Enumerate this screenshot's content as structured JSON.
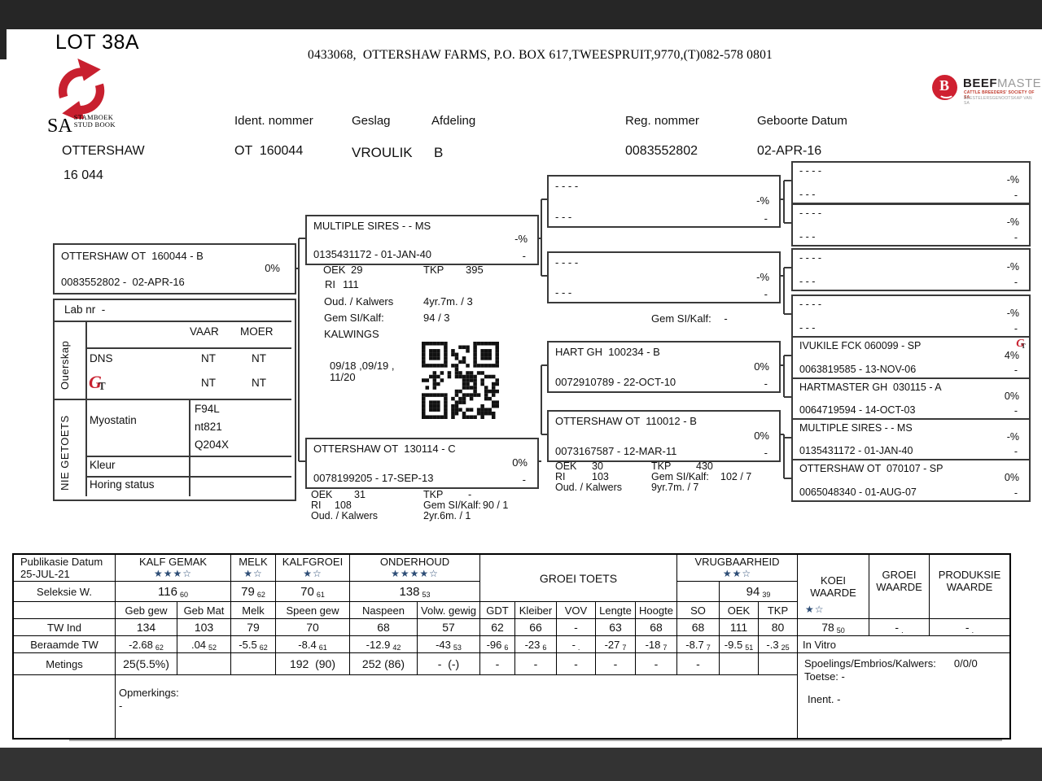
{
  "header": {
    "lot": "LOT 38A",
    "farm_line": "0433068,  OTTERSHAW FARMS, P.O. BOX 617,TWEESPRUIT,9770,(T)082-578 0801",
    "herd_name": "OTTERSHAW",
    "herd_number": "16 044",
    "sa_logo": {
      "sa": "SA",
      "line1": "STAMBOEK",
      "line2": "STUD BOOK"
    },
    "beefmaster": {
      "b": "B",
      "bold": "BEEF",
      "light": "MASTER",
      "sub1": "CATTLE BREEDERS' SOCIETY OF SA",
      "sub2": "BEESTELERSGENOOTSKAP VAN SA"
    },
    "accent_red": "#c8202f",
    "star_blue": "#2d4d76"
  },
  "identity": {
    "ident_label": "Ident. nommer",
    "ident": "OT  160044",
    "geslag_label": "Geslag",
    "geslag": "VROULIK",
    "afdeling_label": "Afdeling",
    "afdeling": "B",
    "reg_label": "Reg. nommer",
    "reg": "0083552802",
    "geboorte_label": "Geboorte Datum",
    "geboorte": "02-APR-16"
  },
  "animal": {
    "name": "OTTERSHAW OT  160044 - B",
    "pct": "0%",
    "reg": "0083552802 -  02-APR-16"
  },
  "lab": {
    "lab_nr": "Lab nr  -",
    "ouerskap": "Ouerskap",
    "vaar": "VAAR",
    "moer": "MOER",
    "dns": "DNS",
    "dns_vaar": "NT",
    "dns_moer": "NT",
    "gt_vaar": "NT",
    "gt_moer": "NT",
    "nie_getoets": "NIE GETOETS",
    "myostatin": "Myostatin",
    "myo1": "F94L",
    "myo2": "nt821",
    "myo3": "Q204X",
    "kleur": "Kleur",
    "horing": "Horing status"
  },
  "pedigree": {
    "sire": {
      "name": "MULTIPLE SIRES - - MS",
      "pct": "-%",
      "reg": "0135431172 - 01-JAN-40",
      "dash": "-"
    },
    "sire_stats": {
      "oek_l": "OEK",
      "oek": "29",
      "tkp_l": "TKP",
      "tkp": "395",
      "ri_l": "RI",
      "ri": "111",
      "oud_l": "Oud. / Kalwers",
      "oud": "4yr.7m. / 3",
      "gem_l": "Gem SI/Kalf:",
      "gem": "94 / 3",
      "kalwings_l": "KALWINGS",
      "kalwings1": "09/18 ,09/19 ,",
      "kalwings2": "11/20"
    },
    "dam": {
      "name": "OTTERSHAW OT  130114 - C",
      "pct": "0%",
      "reg": "0078199205 - 17-SEP-13",
      "dash": "-"
    },
    "dam_stats": {
      "oek_l": "OEK",
      "oek": "31",
      "tkp_l": "TKP",
      "tkp": "-",
      "ri_l": "RI",
      "ri": "108",
      "gem_l": "Gem SI/Kalf:",
      "gem": "90 / 1",
      "oud_l": "Oud. / Kalwers",
      "oud": "2yr.6m. / 1"
    },
    "gem_mid_l": "Gem SI/Kalf:",
    "gem_mid": "-",
    "gp": [
      {
        "name": "- - - -",
        "pct": "-%",
        "reg": "- - -",
        "dash": "-"
      },
      {
        "name": "- - - -",
        "pct": "-%",
        "reg": "- - -",
        "dash": "-"
      },
      {
        "name": "HART GH  100234 - B",
        "pct": "0%",
        "reg": "0072910789 - 22-OCT-10",
        "dash": "-"
      },
      {
        "name": "OTTERSHAW OT  110012 - B",
        "pct": "0%",
        "reg": "0073167587 - 12-MAR-11",
        "dash": "-"
      }
    ],
    "gp4_stats": {
      "oek_l": "OEK",
      "oek": "30",
      "tkp_l": "TKP",
      "tkp": "430",
      "ri_l": "RI",
      "ri": "103",
      "gem_l": "Gem SI/Kalf:",
      "gem": "102 / 7",
      "oud_l": "Oud. / Kalwers",
      "oud": "9yr.7m. / 7"
    },
    "ggp": [
      {
        "name": "- - - -",
        "pct": "-%",
        "reg": "- - -",
        "dash": "-"
      },
      {
        "name": "- - - -",
        "pct": "-%",
        "reg": "- - -",
        "dash": "-"
      },
      {
        "name": "- - - -",
        "pct": "-%",
        "reg": "- - -",
        "dash": "-"
      },
      {
        "name": "- - - -",
        "pct": "-%",
        "reg": "- - -",
        "dash": "-"
      },
      {
        "name": "IVUKILE FCK 060099 - SP",
        "pct": "4%",
        "reg": "0063819585 - 13-NOV-06",
        "dash": "-"
      },
      {
        "name": "HARTMASTER GH  030115 - A",
        "pct": "0%",
        "reg": "0064719594 - 14-OCT-03",
        "dash": "-"
      },
      {
        "name": "MULTIPLE SIRES - - MS",
        "pct": "-%",
        "reg": "0135431172 - 01-JAN-40",
        "dash": "-"
      },
      {
        "name": "OTTERSHAW OT  070107 - SP",
        "pct": "0%",
        "reg": "0065048340 - 01-AUG-07",
        "dash": "-"
      }
    ]
  },
  "table": {
    "pub_label": "Publikasie Datum",
    "pub_date": "25-JUL-21",
    "seleksie_label": "Seleksie W.",
    "twind_label": "TW Ind",
    "beraamde_label": "Beraamde TW",
    "metings_label": "Metings",
    "groups": {
      "kg": {
        "title": "KALF GEMAK",
        "stars": "★★★☆",
        "sel": "116",
        "acc": "60"
      },
      "melk": {
        "title": "MELK",
        "stars": "★☆",
        "sel": "79",
        "acc": "62"
      },
      "kgr": {
        "title": "KALFGROEI",
        "stars": "★☆",
        "sel": "70",
        "acc": "61"
      },
      "ond": {
        "title": "ONDERHOUD",
        "stars": "★★★★☆",
        "sel": "138",
        "acc": "53"
      },
      "gto": {
        "title": "GROEI TOETS"
      },
      "vru": {
        "title": "VRUGBAARHEID",
        "stars": "★★☆",
        "sel": "94",
        "acc": "39"
      },
      "koei": {
        "title": "KOEI WAARDE",
        "stars": "★☆"
      },
      "grw": {
        "title": "GROEI WAARDE"
      },
      "prw": {
        "title": "PRODUKSIE WAARDE"
      }
    },
    "cols": [
      "Geb gew",
      "Geb Mat",
      "Melk",
      "Speen gew",
      "Naspeen",
      "Volw. gewig",
      "GDT",
      "Kleiber",
      "VOV",
      "Lengte",
      "Hoogte",
      "SO",
      "OEK",
      "TKP"
    ],
    "twind": [
      "134",
      "103",
      "79",
      "70",
      "68",
      "57",
      "62",
      "66",
      "-",
      "63",
      "68",
      "68",
      "111",
      "80"
    ],
    "twind_koei": {
      "val": "78",
      "acc": "50"
    },
    "twind_grw": {
      "val": "-",
      "acc": "."
    },
    "twind_prw": {
      "val": "-",
      "acc": "."
    },
    "ber_vals": [
      "-2.68",
      ".04",
      "-5.5",
      "-8.4",
      "-12.9",
      "-43",
      "-96",
      "-23",
      "-",
      "-27",
      "-18",
      "-8.7",
      "-9.5",
      "-.3"
    ],
    "ber_accs": [
      "62",
      "52",
      "62",
      "61",
      "42",
      "53",
      "6",
      "6",
      ".",
      "7",
      "7",
      "7",
      "51",
      "25"
    ],
    "met": [
      "25(5.5%)",
      "",
      "",
      "192  (90)",
      "252 (86)",
      "-  (-)",
      "-",
      "-",
      "-",
      "-",
      "-",
      "-",
      "",
      ""
    ],
    "invitro": "In Vitro",
    "spoelings_label": "Spoelings/Embrios/Kalwers:",
    "spoelings": "0/0/0",
    "toetse": "Toetse: -",
    "inent": "Inent. -",
    "opmerkings_label": "Opmerkings:",
    "opmerkings": "-"
  }
}
